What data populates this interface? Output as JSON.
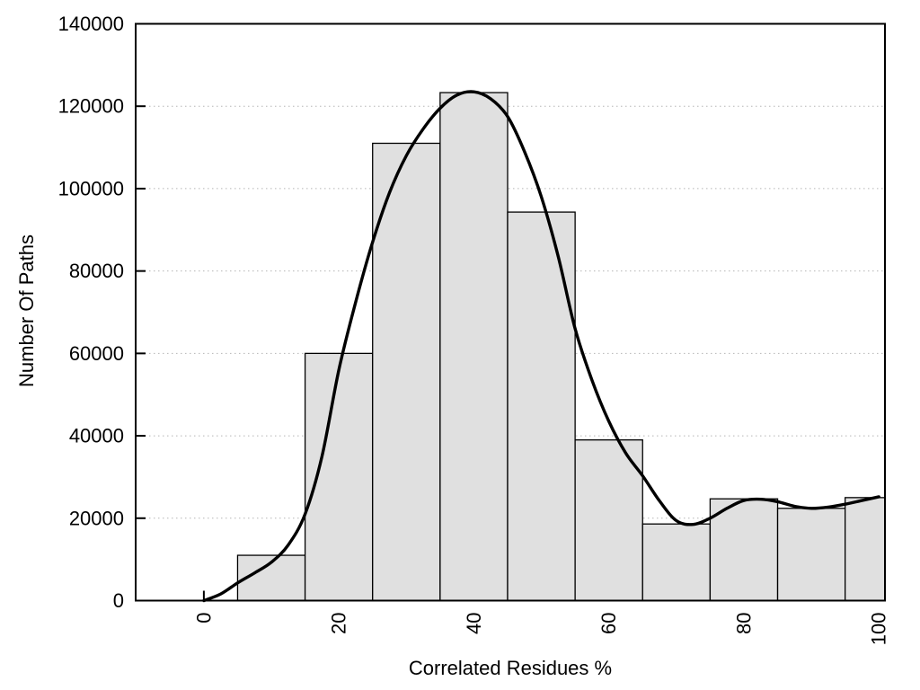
{
  "page": {
    "background": "#ffffff",
    "text_color": "#000000"
  },
  "chart_data": {
    "type": "bar",
    "subtype": "histogram-with-density-curve",
    "title": "",
    "xlabel": "Correlated Residues %",
    "ylabel": "Number Of Paths",
    "xlim": [
      -10.1,
      100.9
    ],
    "ylim": [
      0,
      140000
    ],
    "x_ticks": [
      0,
      20,
      40,
      60,
      80,
      100
    ],
    "y_ticks": [
      0,
      20000,
      40000,
      60000,
      80000,
      100000,
      120000,
      140000
    ],
    "x_tick_labels_rotated": true,
    "grid": "horizontal-dotted",
    "legend": "none",
    "colors": {
      "bar_fill": "#e0e0e0",
      "bar_stroke": "#000000",
      "curve": "#000000",
      "border": "#000000",
      "grid": "#b5b5b5",
      "text": "#000000"
    },
    "bins": [
      {
        "from": 5,
        "to": 15,
        "count": 11000
      },
      {
        "from": 15,
        "to": 25,
        "count": 60000
      },
      {
        "from": 25,
        "to": 35,
        "count": 111000
      },
      {
        "from": 35,
        "to": 45,
        "count": 123300
      },
      {
        "from": 45,
        "to": 55,
        "count": 94300
      },
      {
        "from": 55,
        "to": 65,
        "count": 39000
      },
      {
        "from": 65,
        "to": 75,
        "count": 18600
      },
      {
        "from": 75,
        "to": 85,
        "count": 24700
      },
      {
        "from": 85,
        "to": 95,
        "count": 22400
      },
      {
        "from": 95,
        "to": 100,
        "count": 25000
      }
    ],
    "last_bin_extends_to_right_border": true,
    "smooth_curve": [
      [
        0,
        0
      ],
      [
        2.5,
        1600
      ],
      [
        5,
        4300
      ],
      [
        7.5,
        6700
      ],
      [
        10,
        9300
      ],
      [
        12.5,
        13500
      ],
      [
        15,
        21000
      ],
      [
        17.5,
        35000
      ],
      [
        20,
        56000
      ],
      [
        22.5,
        72500
      ],
      [
        25,
        87000
      ],
      [
        27.5,
        99000
      ],
      [
        30,
        108000
      ],
      [
        32.5,
        114500
      ],
      [
        35,
        119500
      ],
      [
        37.5,
        122700
      ],
      [
        40,
        123500
      ],
      [
        42.5,
        121800
      ],
      [
        45,
        117500
      ],
      [
        47.5,
        109000
      ],
      [
        50,
        98000
      ],
      [
        52.5,
        83500
      ],
      [
        55,
        66000
      ],
      [
        57.5,
        53500
      ],
      [
        60,
        43500
      ],
      [
        62.5,
        35800
      ],
      [
        65,
        30300
      ],
      [
        67.5,
        24200
      ],
      [
        70,
        19400
      ],
      [
        72.5,
        18500
      ],
      [
        75,
        20000
      ],
      [
        77.5,
        22400
      ],
      [
        80,
        24300
      ],
      [
        82.5,
        24600
      ],
      [
        85,
        24000
      ],
      [
        87.5,
        22900
      ],
      [
        90,
        22400
      ],
      [
        92.5,
        22700
      ],
      [
        95,
        23400
      ],
      [
        97.5,
        24300
      ],
      [
        100,
        25200
      ]
    ]
  }
}
